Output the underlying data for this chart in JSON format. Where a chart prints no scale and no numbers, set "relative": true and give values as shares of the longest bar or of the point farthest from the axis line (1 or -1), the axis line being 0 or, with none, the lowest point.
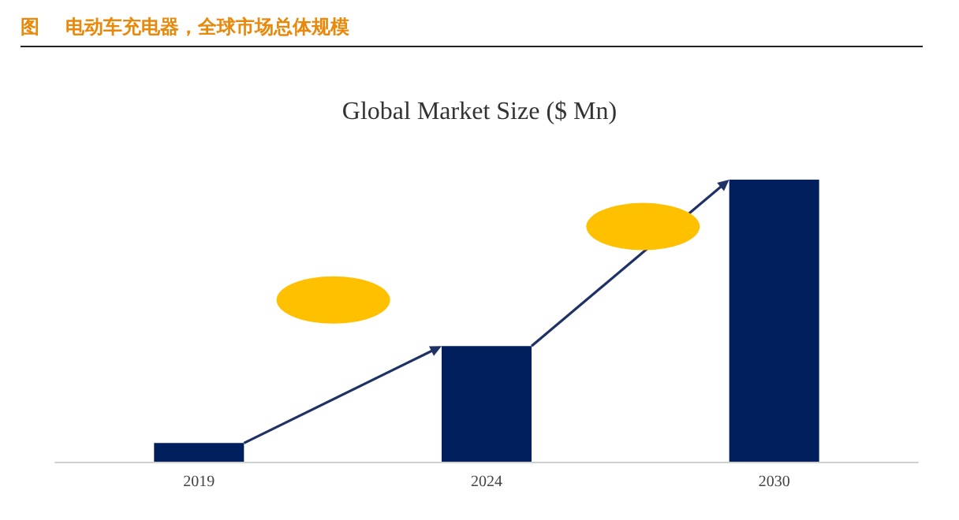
{
  "chart_data": {
    "type": "bar",
    "title": "图    电动车充电器，全球市场总体规模",
    "subtitle": "Global Market Size ($ Mn)",
    "categories": [
      "2019",
      "2024",
      "2030"
    ],
    "values": [
      0.066,
      0.41,
      1
    ],
    "color": "#001f5c",
    "relative": true
  }
}
